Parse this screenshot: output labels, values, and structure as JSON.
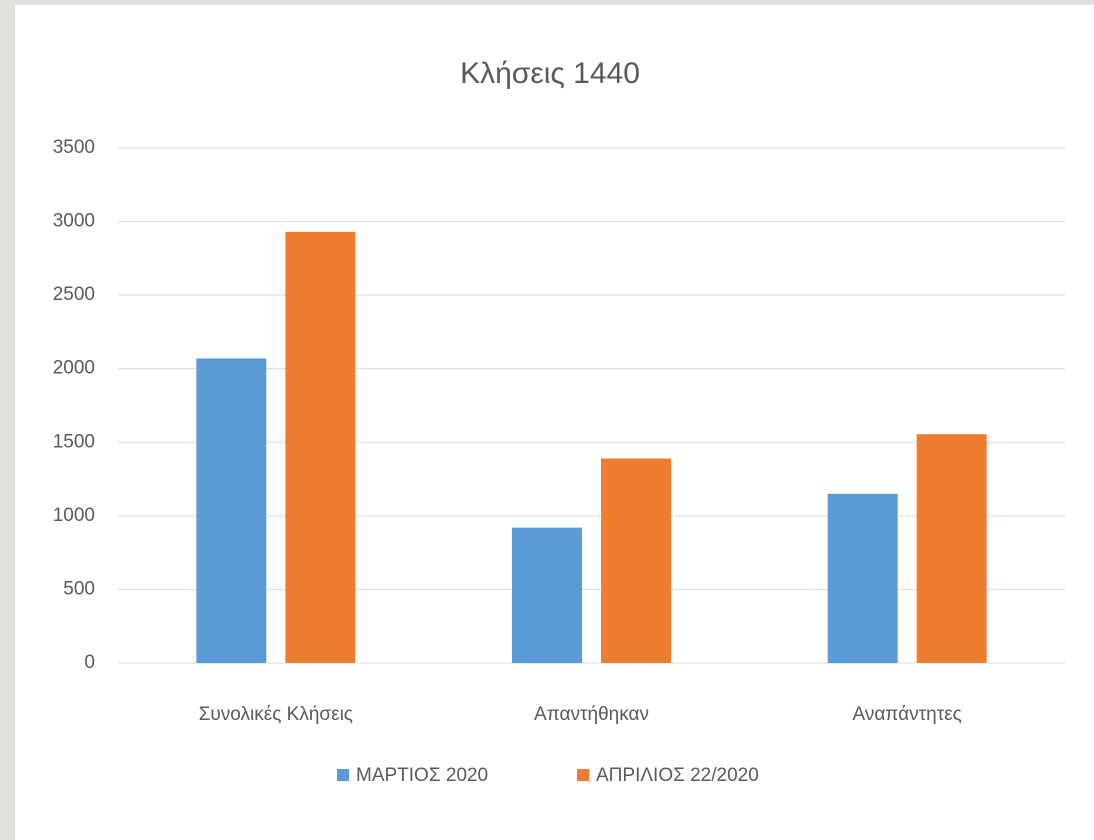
{
  "chart_data": {
    "type": "bar",
    "title": "Κλήσεις 1440",
    "categories": [
      "Συνολικές Κλήσεις",
      "Απαντήθηκαν",
      "Αναπάντητες"
    ],
    "series": [
      {
        "name": "ΜΑΡΤΙΟΣ 2020",
        "color": "#5b9bd5",
        "values": [
          2070,
          920,
          1150
        ]
      },
      {
        "name": "ΑΠΡΙΛΙΟΣ 22/2020",
        "color": "#ed7d31",
        "values": [
          2930,
          1390,
          1555
        ]
      }
    ],
    "ylim": [
      0,
      3500
    ],
    "yticks": [
      0,
      500,
      1000,
      1500,
      2000,
      2500,
      3000,
      3500
    ],
    "grid": true,
    "legend": "bottom"
  }
}
